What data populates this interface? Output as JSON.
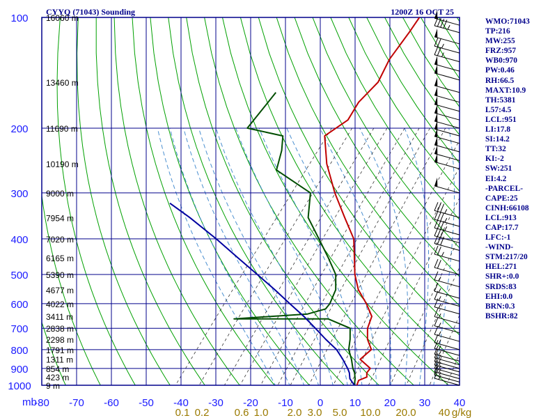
{
  "chart_data": {
    "type": "line",
    "title": "CYYQ (71043) Sounding",
    "valid_time": "1200Z 16 OCT 25",
    "pressure_axis": {
      "ticks": [
        100,
        200,
        300,
        400,
        500,
        600,
        700,
        800,
        900,
        1000
      ],
      "range": [
        100,
        1000
      ],
      "unit": "mb",
      "log_scale": true
    },
    "temperature_axis": {
      "ticks": [
        -80,
        -70,
        -60,
        -50,
        -40,
        -30,
        -20,
        -10,
        0,
        10,
        20,
        30,
        40
      ],
      "range": [
        -80,
        40
      ]
    },
    "mixing_ratio_axis": {
      "labels": [
        "0.1",
        "0.2",
        "0.6",
        "1.0",
        "2.0",
        "3.0",
        "5.0",
        "10.0",
        "20.0",
        "40"
      ],
      "unit": "g/kg"
    },
    "height_labels": [
      {
        "p": 100,
        "label": "16060 m"
      },
      {
        "p": 150,
        "label": "13460 m"
      },
      {
        "p": 200,
        "label": "11690 m"
      },
      {
        "p": 250,
        "label": "10190 m"
      },
      {
        "p": 300,
        "label": "9000 m"
      },
      {
        "p": 350,
        "label": "7954 m"
      },
      {
        "p": 400,
        "label": "7020 m"
      },
      {
        "p": 450,
        "label": "6165 m"
      },
      {
        "p": 500,
        "label": "5390 m"
      },
      {
        "p": 550,
        "label": "4677 m"
      },
      {
        "p": 600,
        "label": "4022 m"
      },
      {
        "p": 650,
        "label": "3411 m"
      },
      {
        "p": 700,
        "label": "2838 m"
      },
      {
        "p": 750,
        "label": "2298 m"
      },
      {
        "p": 800,
        "label": "1791 m"
      },
      {
        "p": 850,
        "label": "1311 m"
      },
      {
        "p": 900,
        "label": "854 m"
      },
      {
        "p": 950,
        "label": "423 m"
      },
      {
        "p": 1000,
        "label": "9 m"
      }
    ],
    "series": [
      {
        "color": "#c00000",
        "points": [
          [
            1000,
            10.5
          ],
          [
            970,
            9.9
          ],
          [
            950,
            11.5
          ],
          [
            925,
            10.5
          ],
          [
            900,
            10.5
          ],
          [
            850,
            5.5
          ],
          [
            800,
            6.5
          ],
          [
            750,
            3.0
          ],
          [
            700,
            0.5
          ],
          [
            650,
            -1.0
          ],
          [
            600,
            -5.5
          ],
          [
            550,
            -11.0
          ],
          [
            500,
            -15.5
          ],
          [
            450,
            -19.5
          ],
          [
            400,
            -24.0
          ],
          [
            350,
            -31.5
          ],
          [
            300,
            -40.0
          ],
          [
            250,
            -49.0
          ],
          [
            210,
            -56.0
          ],
          [
            190,
            -53.0
          ],
          [
            170,
            -54.0
          ],
          [
            150,
            -53.0
          ],
          [
            130,
            -55.0
          ],
          [
            110,
            -55.5
          ],
          [
            100,
            -56.0
          ]
        ]
      },
      {
        "color": "#004d00",
        "points": [
          [
            1000,
            9.8
          ],
          [
            960,
            8.5
          ],
          [
            925,
            7.0
          ],
          [
            900,
            5.5
          ],
          [
            850,
            3.0
          ],
          [
            800,
            0.0
          ],
          [
            750,
            -2.0
          ],
          [
            700,
            -4.5
          ],
          [
            660,
            -13.0
          ],
          [
            660,
            -40.0
          ],
          [
            640,
            -20.0
          ],
          [
            620,
            -16.0
          ],
          [
            600,
            -16.0
          ],
          [
            550,
            -17.5
          ],
          [
            500,
            -21.0
          ],
          [
            450,
            -27.0
          ],
          [
            400,
            -34.0
          ],
          [
            350,
            -42.0
          ],
          [
            300,
            -47.0
          ],
          [
            260,
            -62.0
          ],
          [
            230,
            -65.0
          ],
          [
            210,
            -68.0
          ],
          [
            200,
            -80.0
          ],
          [
            180,
            -80.0
          ],
          [
            160,
            -80.0
          ]
        ]
      },
      {
        "color": "#0000a0",
        "points": [
          [
            1000,
            9.8
          ],
          [
            960,
            7.0
          ],
          [
            925,
            5.5
          ],
          [
            900,
            4.0
          ],
          [
            850,
            0.5
          ],
          [
            800,
            -3.5
          ],
          [
            750,
            -9.0
          ],
          [
            700,
            -14.5
          ],
          [
            650,
            -20.5
          ],
          [
            600,
            -27.5
          ],
          [
            550,
            -35.0
          ],
          [
            500,
            -43.5
          ],
          [
            450,
            -53.0
          ],
          [
            400,
            -63.5
          ],
          [
            350,
            -76.0
          ],
          [
            320,
            -85.0
          ]
        ]
      }
    ],
    "wind_barbs": [
      {
        "p": 105,
        "speed": 50
      },
      {
        "p": 110,
        "speed": 45
      },
      {
        "p": 118,
        "speed": 50
      },
      {
        "p": 125,
        "speed": 25
      },
      {
        "p": 132,
        "speed": 25
      },
      {
        "p": 140,
        "speed": 50
      },
      {
        "p": 148,
        "speed": 50
      },
      {
        "p": 160,
        "speed": 50
      },
      {
        "p": 170,
        "speed": 50
      },
      {
        "p": 180,
        "speed": 50
      },
      {
        "p": 190,
        "speed": 50
      },
      {
        "p": 200,
        "speed": 50
      },
      {
        "p": 210,
        "speed": 50
      },
      {
        "p": 220,
        "speed": 50
      },
      {
        "p": 232,
        "speed": 50
      },
      {
        "p": 245,
        "speed": 50
      },
      {
        "p": 258,
        "speed": 50
      },
      {
        "p": 300,
        "speed": 50
      },
      {
        "p": 350,
        "speed": 35
      },
      {
        "p": 370,
        "speed": 35
      },
      {
        "p": 390,
        "speed": 35
      },
      {
        "p": 410,
        "speed": 30
      },
      {
        "p": 430,
        "speed": 30
      },
      {
        "p": 460,
        "speed": 25
      },
      {
        "p": 500,
        "speed": 20
      },
      {
        "p": 540,
        "speed": 15
      },
      {
        "p": 580,
        "speed": 15
      },
      {
        "p": 610,
        "speed": 15
      },
      {
        "p": 640,
        "speed": 15
      },
      {
        "p": 680,
        "speed": 15
      },
      {
        "p": 720,
        "speed": 15
      },
      {
        "p": 760,
        "speed": 15
      },
      {
        "p": 800,
        "speed": 15
      },
      {
        "p": 830,
        "speed": 15
      },
      {
        "p": 860,
        "speed": 15
      },
      {
        "p": 880,
        "speed": 15
      },
      {
        "p": 900,
        "speed": 15
      },
      {
        "p": 920,
        "speed": 15
      },
      {
        "p": 940,
        "speed": 15
      },
      {
        "p": 960,
        "speed": 15
      },
      {
        "p": 980,
        "speed": 15
      },
      {
        "p": 1000,
        "speed": 15
      }
    ]
  },
  "stats": [
    "WMO:71043",
    "TP:216",
    "MW:255",
    "FRZ:957",
    "WB0:970",
    "PW:0.46",
    "RH:66.5",
    "MAXT:10.9",
    "TH:5381",
    "L57:4.5",
    "LCL:951",
    "LI:17.8",
    "SI:14.2",
    "TT:32",
    "KI:-2",
    "SW:251",
    "EI:4.2",
    "-PARCEL-",
    "CAPE:25",
    "CINH:66108",
    "LCL:913",
    "CAP:17.7",
    "LFC:-1",
    "-WIND-",
    "STM:217/20",
    "HEL:271",
    "SHR+:0.0",
    "SRDS:83",
    "EHI:0.0",
    "BRN:0.3",
    "BSHR:82"
  ],
  "colors": {
    "grid": "#00008b",
    "dry_adiabat": "#00a000",
    "moist_adiabat": "#4a8fd0",
    "mixing_ratio": "#333333",
    "mixing_ratio_label": "#9a7a00",
    "axis_label": "#1a1aff",
    "temperature": "#c00000",
    "dewpoint": "#004d00",
    "parcel": "#0000a0",
    "stats_text": "#00008b"
  }
}
